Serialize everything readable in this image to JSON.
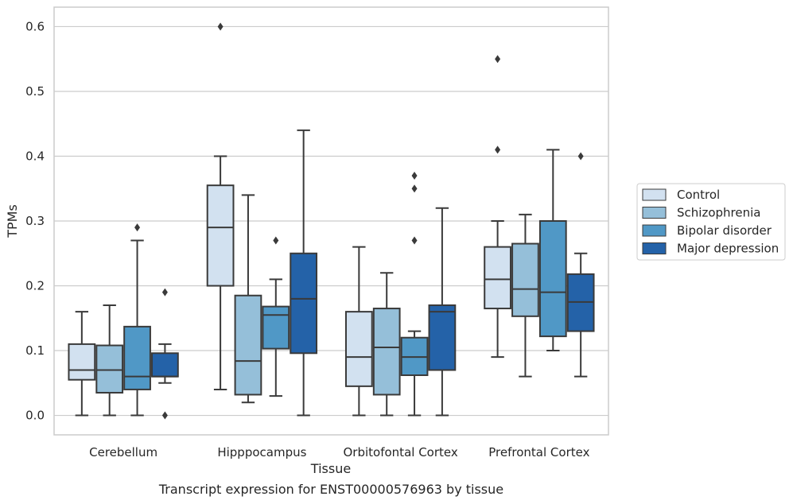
{
  "chart_data": {
    "type": "box",
    "caption": "Transcript expression for ENST00000576963 by tissue",
    "xlabel": "Tissue",
    "ylabel": "TPMs",
    "ylim": [
      -0.03,
      0.63
    ],
    "yticks": [
      "0.0",
      "0.1",
      "0.2",
      "0.3",
      "0.4",
      "0.5",
      "0.6"
    ],
    "grid": "horizontal",
    "legend_position": "right",
    "categories": [
      "Cerebellum",
      "Hipppocampus",
      "Orbitofontal Cortex",
      "Prefrontal Cortex"
    ],
    "series": [
      {
        "name": "Control",
        "color": "#d2e1f0",
        "boxes": [
          {
            "whislo": 0.0,
            "q1": 0.055,
            "med": 0.07,
            "q3": 0.11,
            "whishi": 0.16,
            "fliers": []
          },
          {
            "whislo": 0.04,
            "q1": 0.2,
            "med": 0.29,
            "q3": 0.355,
            "whishi": 0.4,
            "fliers": [
              0.6
            ]
          },
          {
            "whislo": 0.0,
            "q1": 0.045,
            "med": 0.09,
            "q3": 0.16,
            "whishi": 0.26,
            "fliers": []
          },
          {
            "whislo": 0.09,
            "q1": 0.165,
            "med": 0.21,
            "q3": 0.26,
            "whishi": 0.3,
            "fliers": [
              0.41,
              0.55
            ]
          }
        ]
      },
      {
        "name": "Schizophrenia",
        "color": "#95bfd9",
        "boxes": [
          {
            "whislo": 0.0,
            "q1": 0.035,
            "med": 0.07,
            "q3": 0.108,
            "whishi": 0.17,
            "fliers": []
          },
          {
            "whislo": 0.02,
            "q1": 0.032,
            "med": 0.084,
            "q3": 0.185,
            "whishi": 0.34,
            "fliers": []
          },
          {
            "whislo": 0.0,
            "q1": 0.032,
            "med": 0.105,
            "q3": 0.165,
            "whishi": 0.22,
            "fliers": []
          },
          {
            "whislo": 0.06,
            "q1": 0.153,
            "med": 0.195,
            "q3": 0.265,
            "whishi": 0.31,
            "fliers": []
          }
        ]
      },
      {
        "name": "Bipolar disorder",
        "color": "#5098c6",
        "boxes": [
          {
            "whislo": 0.0,
            "q1": 0.04,
            "med": 0.06,
            "q3": 0.137,
            "whishi": 0.27,
            "fliers": [
              0.29
            ]
          },
          {
            "whislo": 0.03,
            "q1": 0.103,
            "med": 0.155,
            "q3": 0.168,
            "whishi": 0.21,
            "fliers": [
              0.27
            ]
          },
          {
            "whislo": 0.0,
            "q1": 0.062,
            "med": 0.09,
            "q3": 0.12,
            "whishi": 0.13,
            "fliers": [
              0.27,
              0.35,
              0.37
            ]
          },
          {
            "whislo": 0.1,
            "q1": 0.122,
            "med": 0.19,
            "q3": 0.3,
            "whishi": 0.41,
            "fliers": []
          }
        ]
      },
      {
        "name": "Major depression",
        "color": "#2462a8",
        "boxes": [
          {
            "whislo": 0.05,
            "q1": 0.06,
            "med": 0.06,
            "q3": 0.096,
            "whishi": 0.11,
            "fliers": [
              0.0,
              0.19
            ]
          },
          {
            "whislo": 0.0,
            "q1": 0.096,
            "med": 0.18,
            "q3": 0.25,
            "whishi": 0.44,
            "fliers": []
          },
          {
            "whislo": 0.0,
            "q1": 0.07,
            "med": 0.16,
            "q3": 0.17,
            "whishi": 0.32,
            "fliers": []
          },
          {
            "whislo": 0.06,
            "q1": 0.13,
            "med": 0.175,
            "q3": 0.218,
            "whishi": 0.25,
            "fliers": [
              0.4
            ]
          }
        ]
      }
    ]
  }
}
